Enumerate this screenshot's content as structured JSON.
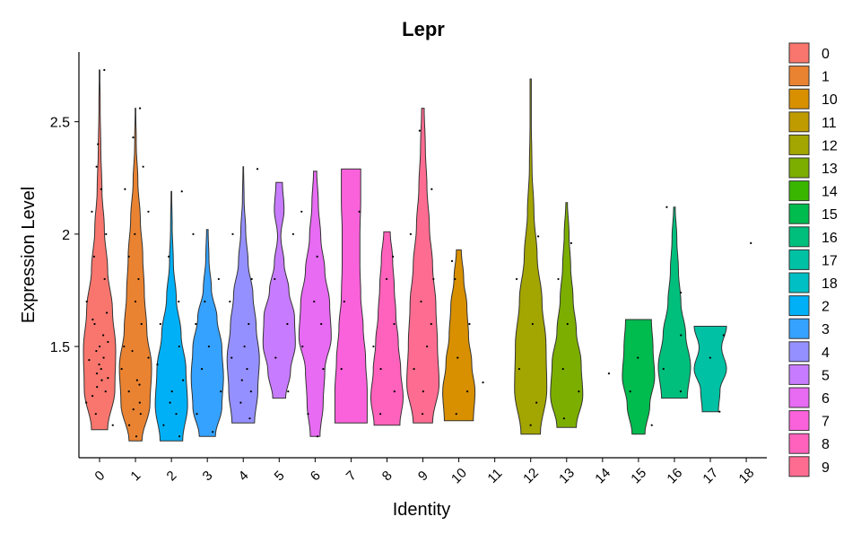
{
  "chart_data": {
    "type": "violin",
    "title": "Lepr",
    "x_label": "Identity",
    "y_label": "Expression Level",
    "categories": [
      "0",
      "1",
      "2",
      "3",
      "4",
      "5",
      "6",
      "7",
      "8",
      "9",
      "10",
      "11",
      "12",
      "13",
      "14",
      "15",
      "16",
      "17",
      "18"
    ],
    "colors": [
      "#F8766D",
      "#EA8331",
      "#00B0F6",
      "#35A2FF",
      "#9590FF",
      "#C77CFF",
      "#E76BF3",
      "#FA62DB",
      "#FF62BC",
      "#FF6C91",
      "#D89000",
      "#C09B00",
      "#A3A500",
      "#7CAE00",
      "#39B600",
      "#00BB4E",
      "#00BF7D",
      "#00C1A3",
      "#00BFC4"
    ],
    "legend": [
      "0",
      "1",
      "10",
      "11",
      "12",
      "13",
      "14",
      "15",
      "16",
      "17",
      "18",
      "2",
      "3",
      "4",
      "5",
      "6",
      "7",
      "8",
      "9"
    ],
    "legend_colors": [
      "#F8766D",
      "#EA8331",
      "#D89000",
      "#C09B00",
      "#A3A500",
      "#7CAE00",
      "#39B600",
      "#00BB4E",
      "#00BF7D",
      "#00C1A3",
      "#00BFC4",
      "#00B0F6",
      "#35A2FF",
      "#9590FF",
      "#C77CFF",
      "#E76BF3",
      "#FA62DB",
      "#FF62BC",
      "#FF6C91"
    ],
    "ylim": [
      1.005,
      2.81
    ],
    "yticks": [
      1.5,
      2.0,
      2.5
    ],
    "violins": [
      {
        "min": 1.13,
        "max": 2.73,
        "widths": [
          0.5,
          0.95,
          1,
          0.8,
          0.5,
          0.3,
          0.15,
          0.08,
          0.04,
          0.02
        ]
      },
      {
        "min": 1.08,
        "max": 2.56,
        "widths": [
          0.4,
          0.9,
          1,
          0.7,
          0.55,
          0.45,
          0.3,
          0.15,
          0.05,
          0.02
        ]
      },
      {
        "min": 1.08,
        "max": 2.19,
        "widths": [
          0.7,
          1,
          0.9,
          0.6,
          0.3,
          0.12,
          0.05,
          0.02
        ]
      },
      {
        "min": 1.1,
        "max": 2.02,
        "widths": [
          0.5,
          0.9,
          1,
          0.9,
          0.6,
          0.25,
          0.1,
          0.05
        ]
      },
      {
        "min": 1.16,
        "max": 2.3,
        "widths": [
          0.7,
          0.9,
          1,
          0.8,
          0.6,
          0.3,
          0.15,
          0.05,
          0.02
        ]
      },
      {
        "min": 1.27,
        "max": 2.23,
        "widths": [
          0.4,
          0.7,
          1,
          0.95,
          0.6,
          0.3,
          0.1,
          0.3,
          0.2
        ]
      },
      {
        "min": 1.1,
        "max": 2.28,
        "widths": [
          0.3,
          0.5,
          0.6,
          1,
          0.9,
          0.6,
          0.35,
          0.2,
          0.1
        ]
      },
      {
        "min": 1.16,
        "max": 2.29,
        "widths": [
          1,
          1,
          0.9,
          0.75,
          0.6,
          0.55,
          0.55,
          0.6,
          0.6
        ]
      },
      {
        "min": 1.15,
        "max": 2.01,
        "widths": [
          0.8,
          1,
          0.85,
          0.7,
          0.55,
          0.45,
          0.35,
          0.2
        ]
      },
      {
        "min": 1.16,
        "max": 2.56,
        "widths": [
          0.6,
          1,
          0.9,
          0.8,
          0.6,
          0.4,
          0.25,
          0.15,
          0.08
        ]
      },
      {
        "min": 1.17,
        "max": 1.93,
        "widths": [
          0.9,
          1,
          0.8,
          0.6,
          0.5,
          0.3,
          0.15
        ]
      },
      null,
      {
        "min": 1.11,
        "max": 2.69,
        "widths": [
          0.6,
          1,
          0.95,
          0.7,
          0.4,
          0.2,
          0.08,
          0.04,
          0.04
        ]
      },
      {
        "min": 1.14,
        "max": 2.14,
        "widths": [
          0.6,
          1,
          0.9,
          0.6,
          0.4,
          0.25,
          0.15,
          0.05
        ]
      },
      null,
      {
        "min": 1.11,
        "max": 1.62,
        "widths": [
          0.4,
          0.7,
          1,
          0.9,
          0.8
        ]
      },
      {
        "min": 1.27,
        "max": 2.12,
        "widths": [
          0.8,
          1,
          0.7,
          0.4,
          0.25,
          0.15,
          0.05
        ]
      },
      {
        "min": 1.21,
        "max": 1.59,
        "widths": [
          0.5,
          0.6,
          1,
          0.7,
          1
        ]
      },
      null
    ],
    "points": [
      [
        1.15,
        1.2,
        1.25,
        1.3,
        1.32,
        1.35,
        1.38,
        1.4,
        1.42,
        1.45,
        1.48,
        1.5,
        1.55,
        1.6,
        1.65,
        1.7,
        1.8,
        1.9,
        2.0,
        2.1,
        2.2,
        2.3,
        2.4,
        2.73,
        1.28,
        1.36,
        1.44,
        1.52,
        1.62
      ],
      [
        1.1,
        1.15,
        1.2,
        1.25,
        1.3,
        1.35,
        1.4,
        1.45,
        1.5,
        1.6,
        1.7,
        1.8,
        1.9,
        2.0,
        2.1,
        2.2,
        2.3,
        2.43,
        2.56,
        1.22,
        1.33,
        1.48
      ],
      [
        1.1,
        1.15,
        1.2,
        1.25,
        1.3,
        1.35,
        1.42,
        1.5,
        1.6,
        1.7,
        1.9,
        2.19
      ],
      [
        1.12,
        1.2,
        1.3,
        1.4,
        1.5,
        1.6,
        1.7,
        1.8,
        2.0
      ],
      [
        1.18,
        1.25,
        1.3,
        1.35,
        1.4,
        1.45,
        1.5,
        1.6,
        1.7,
        1.8,
        2.0,
        2.29
      ],
      [
        1.3,
        1.45,
        1.6,
        1.8,
        2.0
      ],
      [
        1.1,
        1.2,
        1.4,
        1.5,
        1.6,
        1.7,
        1.9,
        2.1
      ],
      [
        1.4,
        1.7,
        2.1
      ],
      [
        1.2,
        1.3,
        1.4,
        1.5,
        1.6,
        1.8,
        1.9
      ],
      [
        1.2,
        1.3,
        1.4,
        1.5,
        1.6,
        1.7,
        1.8,
        2.0,
        2.2,
        2.46
      ],
      [
        1.2,
        1.3,
        1.45,
        1.6,
        1.8,
        1.88
      ],
      [
        1.34
      ],
      [
        1.15,
        1.25,
        1.4,
        1.6,
        1.8,
        1.99
      ],
      [
        1.18,
        1.3,
        1.4,
        1.6,
        1.8,
        1.96
      ],
      [
        1.38
      ],
      [
        1.15,
        1.3,
        1.45
      ],
      [
        1.3,
        1.4,
        1.55,
        1.74,
        2.12
      ],
      [
        1.21,
        1.45,
        1.55
      ],
      [
        1.96
      ]
    ]
  }
}
